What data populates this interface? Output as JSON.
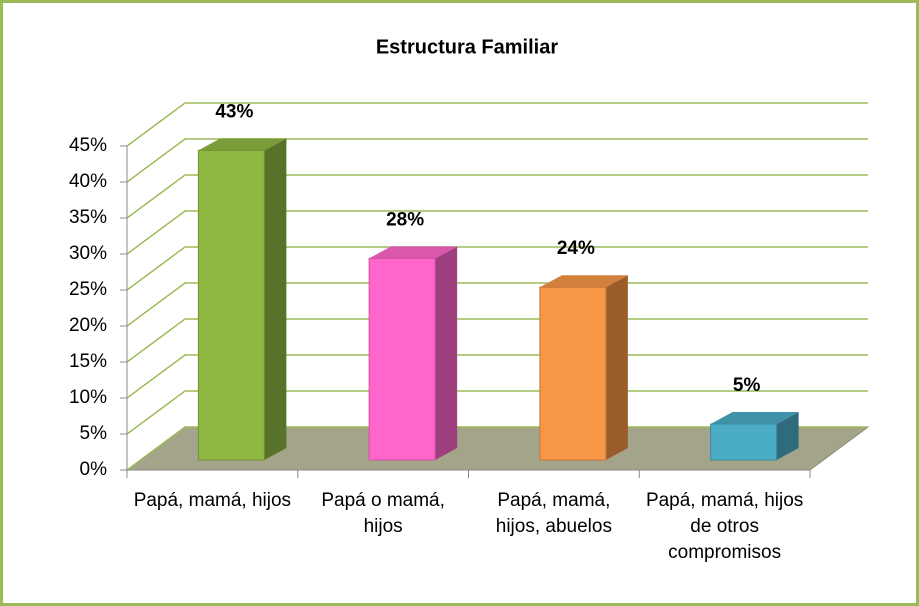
{
  "chart_data": {
    "type": "bar3d",
    "title": "Estructura Familiar",
    "categories": [
      "Papá, mamá, hijos",
      "Papá o mamá, hijos",
      "Papá, mamá, hijos, abuelos",
      "Papá, mamá, hijos de otros compromisos"
    ],
    "values": [
      43,
      28,
      24,
      5
    ],
    "value_labels": [
      "43%",
      "28%",
      "24%",
      "5%"
    ],
    "colors": [
      "#8fb843",
      "#ff66cc",
      "#f79646",
      "#4bacc6"
    ],
    "ylim": [
      0,
      45
    ],
    "yticks": [
      {
        "value": 0,
        "label": "0%"
      },
      {
        "value": 5,
        "label": "5%"
      },
      {
        "value": 10,
        "label": "10%"
      },
      {
        "value": 15,
        "label": "15%"
      },
      {
        "value": 20,
        "label": "20%"
      },
      {
        "value": 25,
        "label": "25%"
      },
      {
        "value": 30,
        "label": "30%"
      },
      {
        "value": 35,
        "label": "35%"
      },
      {
        "value": 40,
        "label": "40%"
      },
      {
        "value": 45,
        "label": "45%"
      }
    ],
    "grid": true
  }
}
